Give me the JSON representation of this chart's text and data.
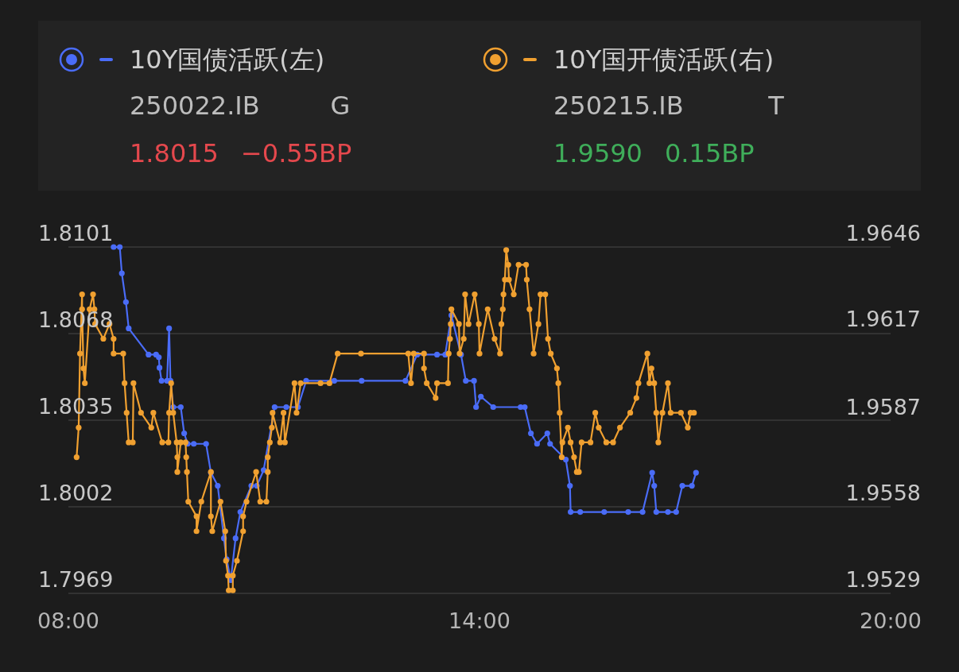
{
  "chart_data": {
    "type": "line",
    "xlim": [
      8,
      20
    ],
    "xticks": [
      {
        "value": 8,
        "label": "08:00"
      },
      {
        "value": 14,
        "label": "14:00"
      },
      {
        "value": 20,
        "label": "20:00"
      }
    ],
    "ylim": [
      1.7969,
      1.8101
    ],
    "yticks": [
      1.7969,
      1.8002,
      1.8035,
      1.8068,
      1.8101
    ],
    "y2lim": [
      1.9529,
      1.9646
    ],
    "y2ticks": [
      1.9529,
      1.9558,
      1.9587,
      1.9617,
      1.9646
    ],
    "grid": "y",
    "legend": "top",
    "marker": "circle",
    "line_style": "solid",
    "annotations": [
      "250022.IB",
      "G",
      "1.8015",
      "−0.55BP",
      "250215.IB",
      "T",
      "1.9590",
      "0.15BP"
    ],
    "series": [
      {
        "name": "10Y国债活跃(左)",
        "color": "#4a6cf7",
        "x": [
          8.66,
          8.75,
          8.78,
          8.84,
          8.88,
          9.17,
          9.28,
          9.32,
          9.33,
          9.36,
          9.44,
          9.47,
          9.49,
          9.53,
          9.64,
          9.69,
          9.74,
          9.83,
          10.01,
          10.08,
          10.18,
          10.27,
          10.31,
          10.37,
          10.44,
          10.51,
          10.67,
          10.75,
          10.85,
          11.01,
          11.18,
          11.35,
          11.47,
          11.88,
          12.28,
          12.92,
          13.09,
          13.38,
          13.5,
          13.59,
          13.73,
          13.8,
          13.92,
          13.95,
          14.02,
          14.2,
          14.6,
          14.66,
          14.75,
          14.84,
          14.99,
          15.03,
          15.26,
          15.32,
          15.33,
          15.47,
          15.82,
          16.17,
          16.38,
          16.52,
          16.55,
          16.58,
          16.75,
          16.87,
          16.96,
          17.1,
          17.16
        ],
        "values": [
          1.8101,
          1.8101,
          1.8091,
          1.808,
          1.807,
          1.806,
          1.806,
          1.8059,
          1.8055,
          1.805,
          1.805,
          1.807,
          1.805,
          1.804,
          1.804,
          1.803,
          1.8026,
          1.8026,
          1.8026,
          1.8015,
          1.801,
          1.799,
          1.7982,
          1.7974,
          1.799,
          1.8,
          1.801,
          1.801,
          1.8016,
          1.804,
          1.804,
          1.804,
          1.805,
          1.805,
          1.805,
          1.805,
          1.806,
          1.806,
          1.806,
          1.8075,
          1.806,
          1.805,
          1.805,
          1.804,
          1.8044,
          1.804,
          1.804,
          1.804,
          1.803,
          1.8026,
          1.803,
          1.8026,
          1.802,
          1.801,
          1.8,
          1.8,
          1.8,
          1.8,
          1.8,
          1.8015,
          1.801,
          1.8,
          1.8,
          1.8,
          1.801,
          1.801,
          1.8015
        ]
      },
      {
        "name": "10Y国开债活跃(右)",
        "color": "#f0a030",
        "axis": "y2",
        "x": [
          8.12,
          8.15,
          8.17,
          8.2,
          8.2,
          8.22,
          8.24,
          8.31,
          8.36,
          8.38,
          8.39,
          8.51,
          8.6,
          8.66,
          8.66,
          8.8,
          8.82,
          8.85,
          8.88,
          8.94,
          8.95,
          9.06,
          9.21,
          9.24,
          9.37,
          9.46,
          9.47,
          9.5,
          9.53,
          9.58,
          9.59,
          9.59,
          9.64,
          9.71,
          9.72,
          9.73,
          9.75,
          9.87,
          9.87,
          9.94,
          10.08,
          10.08,
          10.1,
          10.22,
          10.29,
          10.3,
          10.33,
          10.34,
          10.4,
          10.4,
          10.46,
          10.55,
          10.55,
          10.6,
          10.74,
          10.8,
          10.89,
          10.91,
          10.91,
          10.94,
          10.97,
          10.98,
          11.09,
          11.14,
          11.16,
          11.3,
          11.33,
          11.39,
          11.68,
          11.81,
          11.93,
          12.27,
          12.96,
          13,
          13.04,
          13.19,
          13.19,
          13.23,
          13.36,
          13.38,
          13.54,
          13.55,
          13.57,
          13.58,
          13.59,
          13.7,
          13.71,
          13.77,
          13.79,
          13.84,
          13.93,
          13.99,
          14,
          14.12,
          14.22,
          14.3,
          14.32,
          14.34,
          14.35,
          14.37,
          14.39,
          14.42,
          14.43,
          14.5,
          14.57,
          14.68,
          14.69,
          14.73,
          14.79,
          14.86,
          14.89,
          14.96,
          15,
          15.04,
          15.13,
          15.15,
          15.17,
          15.2,
          15.21,
          15.29,
          15.33,
          15.38,
          15.42,
          15.45,
          15.49,
          15.62,
          15.69,
          15.74,
          15.85,
          15.95,
          16.05,
          16.2,
          16.29,
          16.32,
          16.45,
          16.48,
          16.51,
          16.55,
          16.58,
          16.61,
          16.67,
          16.75,
          16.79,
          16.94,
          17.04,
          17.08,
          17.13
        ],
        "values": [
          1.9575,
          1.9585,
          1.961,
          1.963,
          1.9625,
          1.9605,
          1.96,
          1.9625,
          1.963,
          1.9625,
          1.962,
          1.9615,
          1.962,
          1.9615,
          1.961,
          1.961,
          1.96,
          1.959,
          1.958,
          1.958,
          1.96,
          1.959,
          1.9585,
          1.959,
          1.958,
          1.958,
          1.959,
          1.96,
          1.959,
          1.958,
          1.9575,
          1.957,
          1.958,
          1.958,
          1.9575,
          1.957,
          1.956,
          1.9555,
          1.955,
          1.956,
          1.957,
          1.9555,
          1.955,
          1.956,
          1.955,
          1.954,
          1.9535,
          1.953,
          1.953,
          1.9535,
          1.954,
          1.955,
          1.9555,
          1.956,
          1.957,
          1.956,
          1.956,
          1.957,
          1.9575,
          1.958,
          1.9585,
          1.959,
          1.958,
          1.959,
          1.958,
          1.96,
          1.959,
          1.96,
          1.96,
          1.96,
          1.961,
          1.961,
          1.961,
          1.96,
          1.961,
          1.961,
          1.9605,
          1.96,
          1.9595,
          1.96,
          1.96,
          1.961,
          1.9615,
          1.962,
          1.9625,
          1.962,
          1.961,
          1.9615,
          1.963,
          1.962,
          1.963,
          1.962,
          1.961,
          1.9625,
          1.9615,
          1.961,
          1.962,
          1.9625,
          1.963,
          1.9635,
          1.9645,
          1.964,
          1.9635,
          1.963,
          1.964,
          1.964,
          1.9635,
          1.9625,
          1.961,
          1.962,
          1.963,
          1.963,
          1.9615,
          1.961,
          1.9605,
          1.96,
          1.959,
          1.9575,
          1.958,
          1.9585,
          1.958,
          1.9575,
          1.957,
          1.957,
          1.958,
          1.958,
          1.959,
          1.9585,
          1.958,
          1.958,
          1.9585,
          1.959,
          1.9595,
          1.96,
          1.961,
          1.96,
          1.9605,
          1.96,
          1.959,
          1.958,
          1.959,
          1.96,
          1.959,
          1.959,
          1.9585,
          1.959,
          1.959
        ]
      }
    ]
  }
}
